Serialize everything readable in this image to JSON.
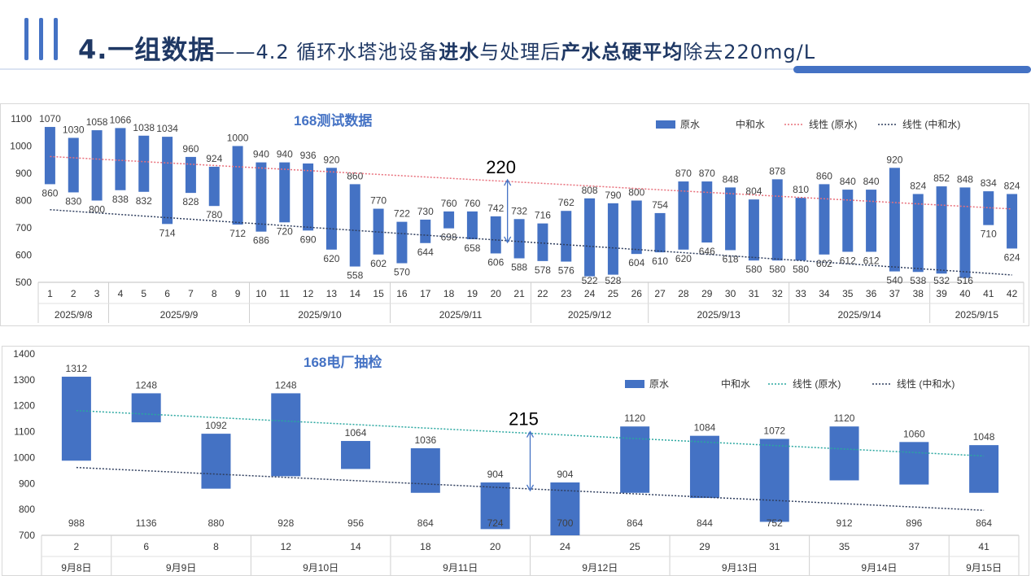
{
  "header": {
    "title_main": "4.一组数据",
    "title_dash": "——",
    "title_parts": [
      {
        "t": "4.2 循环水塔池设备",
        "b": false
      },
      {
        "t": "进水",
        "b": true
      },
      {
        "t": "与处理后",
        "b": false
      },
      {
        "t": "产水总硬平均",
        "b": true
      },
      {
        "t": "除去220mg/L",
        "b": false
      }
    ]
  },
  "colors": {
    "bar": "#4472C4",
    "trend_raw_1": "#E8707C",
    "trend_raw_2": "#2AA7A0",
    "trend_neutral": "#2F3E5E",
    "title": "#4472C4"
  },
  "chart_data": [
    {
      "type": "bar",
      "title": "168测试数据",
      "annotation": "220",
      "ylim": [
        500,
        1100
      ],
      "yticks": [
        500,
        600,
        700,
        800,
        900,
        1000,
        1100
      ],
      "legend": [
        {
          "label": "原水",
          "kind": "bar"
        },
        {
          "label": "中和水",
          "kind": "none"
        },
        {
          "label": "线性 (原水)",
          "kind": "dot-pink"
        },
        {
          "label": "线性 (中和水)",
          "kind": "dot-dark"
        }
      ],
      "categories": [
        "1",
        "2",
        "3",
        "4",
        "5",
        "6",
        "7",
        "8",
        "9",
        "10",
        "11",
        "12",
        "13",
        "14",
        "15",
        "16",
        "17",
        "18",
        "19",
        "20",
        "21",
        "22",
        "23",
        "24",
        "25",
        "26",
        "27",
        "28",
        "29",
        "30",
        "31",
        "32",
        "33",
        "34",
        "35",
        "36",
        "37",
        "38",
        "39",
        "40",
        "41",
        "42"
      ],
      "series": [
        {
          "name": "原水",
          "values": [
            1070,
            1030,
            1058,
            1066,
            1038,
            1034,
            960,
            924,
            1000,
            940,
            940,
            936,
            920,
            860,
            770,
            722,
            730,
            760,
            760,
            742,
            732,
            716,
            762,
            808,
            790,
            800,
            754,
            870,
            870,
            848,
            804,
            878,
            810,
            860,
            840,
            840,
            920,
            824,
            852,
            848,
            834,
            824
          ]
        },
        {
          "name": "中和水",
          "values": [
            860,
            830,
            800,
            838,
            832,
            714,
            828,
            780,
            712,
            686,
            720,
            690,
            620,
            558,
            602,
            570,
            644,
            698,
            658,
            606,
            588,
            578,
            576,
            522,
            528,
            604,
            610,
            620,
            646,
            618,
            580,
            580,
            580,
            602,
            612,
            612,
            540,
            538,
            532,
            516,
            710,
            624
          ]
        }
      ],
      "groups": [
        {
          "label": "2025/9/8",
          "from": 1,
          "to": 3
        },
        {
          "label": "2025/9/9",
          "from": 4,
          "to": 9
        },
        {
          "label": "2025/9/10",
          "from": 10,
          "to": 15
        },
        {
          "label": "2025/9/11",
          "from": 16,
          "to": 21
        },
        {
          "label": "2025/9/12",
          "from": 22,
          "to": 26
        },
        {
          "label": "2025/9/13",
          "from": 27,
          "to": 32
        },
        {
          "label": "2025/9/14",
          "from": 33,
          "to": 38
        },
        {
          "label": "2025/9/15",
          "from": 39,
          "to": 42
        }
      ]
    },
    {
      "type": "bar",
      "title": "168电厂抽检",
      "annotation": "215",
      "ylim": [
        700,
        1400
      ],
      "yticks": [
        700,
        800,
        900,
        1000,
        1100,
        1200,
        1300,
        1400
      ],
      "legend": [
        {
          "label": "原水",
          "kind": "bar"
        },
        {
          "label": "中和水",
          "kind": "none"
        },
        {
          "label": "线性 (原水)",
          "kind": "dot-teal"
        },
        {
          "label": "线性 (中和水)",
          "kind": "dot-dark"
        }
      ],
      "categories": [
        "2",
        "6",
        "8",
        "12",
        "14",
        "18",
        "20",
        "24",
        "25",
        "29",
        "31",
        "35",
        "37",
        "41"
      ],
      "series": [
        {
          "name": "原水",
          "values": [
            1312,
            1248,
            1092,
            1248,
            1064,
            1036,
            904,
            904,
            1120,
            1084,
            1072,
            1120,
            1060,
            1048
          ]
        },
        {
          "name": "中和水",
          "values": [
            988,
            1136,
            880,
            928,
            956,
            864,
            724,
            700,
            864,
            844,
            752,
            912,
            896,
            864
          ]
        }
      ],
      "groups": [
        {
          "label": "9月8日",
          "from": 1,
          "to": 1
        },
        {
          "label": "9月9日",
          "from": 2,
          "to": 3
        },
        {
          "label": "9月10日",
          "from": 4,
          "to": 5
        },
        {
          "label": "9月11日",
          "from": 6,
          "to": 7
        },
        {
          "label": "9月12日",
          "from": 8,
          "to": 9
        },
        {
          "label": "9月13日",
          "from": 10,
          "to": 11
        },
        {
          "label": "9月14日",
          "from": 12,
          "to": 13
        },
        {
          "label": "9月15日",
          "from": 14,
          "to": 14
        }
      ]
    }
  ]
}
